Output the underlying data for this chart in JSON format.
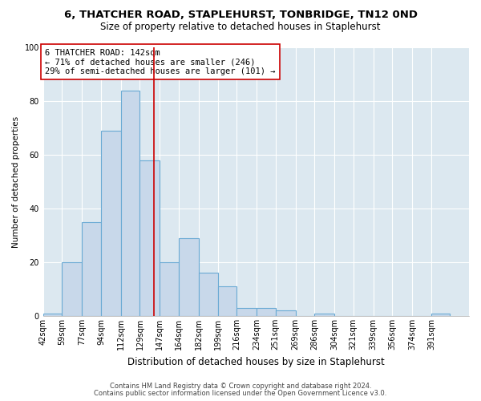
{
  "title": "6, THATCHER ROAD, STAPLEHURST, TONBRIDGE, TN12 0ND",
  "subtitle": "Size of property relative to detached houses in Staplehurst",
  "xlabel": "Distribution of detached houses by size in Staplehurst",
  "ylabel": "Number of detached properties",
  "bar_labels": [
    "42sqm",
    "59sqm",
    "77sqm",
    "94sqm",
    "112sqm",
    "129sqm",
    "147sqm",
    "164sqm",
    "182sqm",
    "199sqm",
    "216sqm",
    "234sqm",
    "251sqm",
    "269sqm",
    "286sqm",
    "304sqm",
    "321sqm",
    "339sqm",
    "356sqm",
    "374sqm",
    "391sqm"
  ],
  "bar_values": [
    1,
    20,
    35,
    69,
    84,
    58,
    20,
    29,
    16,
    11,
    3,
    3,
    2,
    0,
    1,
    0,
    0,
    0,
    0,
    0,
    1
  ],
  "bin_edges": [
    42,
    59,
    77,
    94,
    112,
    129,
    147,
    164,
    182,
    199,
    216,
    234,
    251,
    269,
    286,
    304,
    321,
    339,
    356,
    374,
    391,
    408
  ],
  "bar_color": "#c8d8ea",
  "bar_edge_color": "#6aaad4",
  "vline_x": 142,
  "vline_color": "#cc0000",
  "ylim": [
    0,
    100
  ],
  "yticks": [
    0,
    20,
    40,
    60,
    80,
    100
  ],
  "annotation_title": "6 THATCHER ROAD: 142sqm",
  "annotation_line1": "← 71% of detached houses are smaller (246)",
  "annotation_line2": "29% of semi-detached houses are larger (101) →",
  "annotation_box_facecolor": "#ffffff",
  "annotation_box_edgecolor": "#cc0000",
  "footer1": "Contains HM Land Registry data © Crown copyright and database right 2024.",
  "footer2": "Contains public sector information licensed under the Open Government Licence v3.0.",
  "plot_bg_color": "#dce8f0",
  "fig_bg_color": "#ffffff",
  "grid_color": "#ffffff",
  "title_fontsize": 9.5,
  "subtitle_fontsize": 8.5,
  "xlabel_fontsize": 8.5,
  "ylabel_fontsize": 7.5,
  "tick_fontsize": 7,
  "annotation_fontsize": 7.5,
  "footer_fontsize": 6.0
}
